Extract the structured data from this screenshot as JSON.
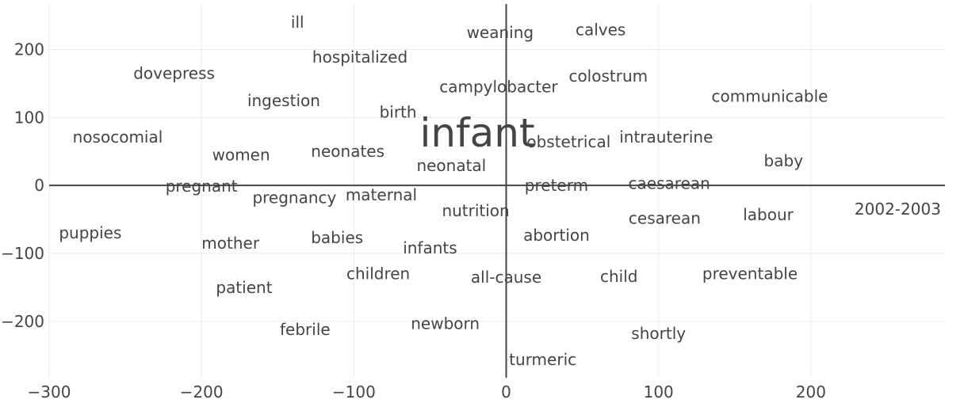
{
  "chart_data": {
    "type": "scatter",
    "title": "",
    "xlabel": "",
    "ylabel": "",
    "xlim": [
      -300,
      288
    ],
    "ylim": [
      -283,
      267
    ],
    "x_ticks": [
      -300,
      -200,
      -100,
      0,
      100,
      200
    ],
    "y_ticks": [
      -200,
      -100,
      0,
      100,
      200
    ],
    "x_tick_labels": [
      "−300",
      "−200",
      "−100",
      "0",
      "100",
      "200"
    ],
    "y_tick_labels": [
      "−200",
      "−100",
      "0",
      "100",
      "200"
    ],
    "grid": true,
    "points": [
      {
        "label": "infant",
        "x": -19,
        "y": 77,
        "size": 50
      },
      {
        "label": "ill",
        "x": -137,
        "y": 240,
        "size": 20
      },
      {
        "label": "weaning",
        "x": -4,
        "y": 225,
        "size": 20
      },
      {
        "label": "calves",
        "x": 62,
        "y": 229,
        "size": 20
      },
      {
        "label": "hospitalized",
        "x": -96,
        "y": 189,
        "size": 20
      },
      {
        "label": "dovepress",
        "x": -218,
        "y": 165,
        "size": 20
      },
      {
        "label": "colostrum",
        "x": 67,
        "y": 161,
        "size": 20
      },
      {
        "label": "campylobacter",
        "x": -5,
        "y": 145,
        "size": 20
      },
      {
        "label": "ingestion",
        "x": -146,
        "y": 125,
        "size": 20
      },
      {
        "label": "communicable",
        "x": 173,
        "y": 131,
        "size": 20
      },
      {
        "label": "birth",
        "x": -71,
        "y": 108,
        "size": 20
      },
      {
        "label": "nosocomial",
        "x": -255,
        "y": 71,
        "size": 20
      },
      {
        "label": "obstetrical",
        "x": 41,
        "y": 64,
        "size": 20
      },
      {
        "label": "intrauterine",
        "x": 105,
        "y": 71,
        "size": 20
      },
      {
        "label": "women",
        "x": -174,
        "y": 45,
        "size": 20
      },
      {
        "label": "neonates",
        "x": -104,
        "y": 50,
        "size": 20
      },
      {
        "label": "baby",
        "x": 182,
        "y": 36,
        "size": 20
      },
      {
        "label": "neonatal",
        "x": -36,
        "y": 29,
        "size": 20
      },
      {
        "label": "pregnant",
        "x": -200,
        "y": -1,
        "size": 20
      },
      {
        "label": "preterm",
        "x": 33,
        "y": 0,
        "size": 20
      },
      {
        "label": "caesarean",
        "x": 107,
        "y": 3,
        "size": 20
      },
      {
        "label": "pregnancy",
        "x": -139,
        "y": -18,
        "size": 20
      },
      {
        "label": "maternal",
        "x": -82,
        "y": -14,
        "size": 20
      },
      {
        "label": "2002-2003",
        "x": 257,
        "y": -35,
        "size": 20
      },
      {
        "label": "nutrition",
        "x": -20,
        "y": -37,
        "size": 20
      },
      {
        "label": "labour",
        "x": 172,
        "y": -43,
        "size": 20
      },
      {
        "label": "cesarean",
        "x": 104,
        "y": -48,
        "size": 20
      },
      {
        "label": "puppies",
        "x": -273,
        "y": -70,
        "size": 20
      },
      {
        "label": "abortion",
        "x": 33,
        "y": -73,
        "size": 20
      },
      {
        "label": "babies",
        "x": -111,
        "y": -77,
        "size": 20
      },
      {
        "label": "mother",
        "x": -181,
        "y": -85,
        "size": 20
      },
      {
        "label": "infants",
        "x": -50,
        "y": -92,
        "size": 20
      },
      {
        "label": "children",
        "x": -84,
        "y": -130,
        "size": 20
      },
      {
        "label": "all-cause",
        "x": 0,
        "y": -135,
        "size": 20
      },
      {
        "label": "child",
        "x": 74,
        "y": -134,
        "size": 20
      },
      {
        "label": "preventable",
        "x": 160,
        "y": -130,
        "size": 20
      },
      {
        "label": "patient",
        "x": -172,
        "y": -150,
        "size": 20
      },
      {
        "label": "newborn",
        "x": -40,
        "y": -203,
        "size": 20
      },
      {
        "label": "febrile",
        "x": -132,
        "y": -212,
        "size": 20
      },
      {
        "label": "shortly",
        "x": 100,
        "y": -218,
        "size": 20
      },
      {
        "label": "turmeric",
        "x": 24,
        "y": -256,
        "size": 20
      }
    ]
  }
}
